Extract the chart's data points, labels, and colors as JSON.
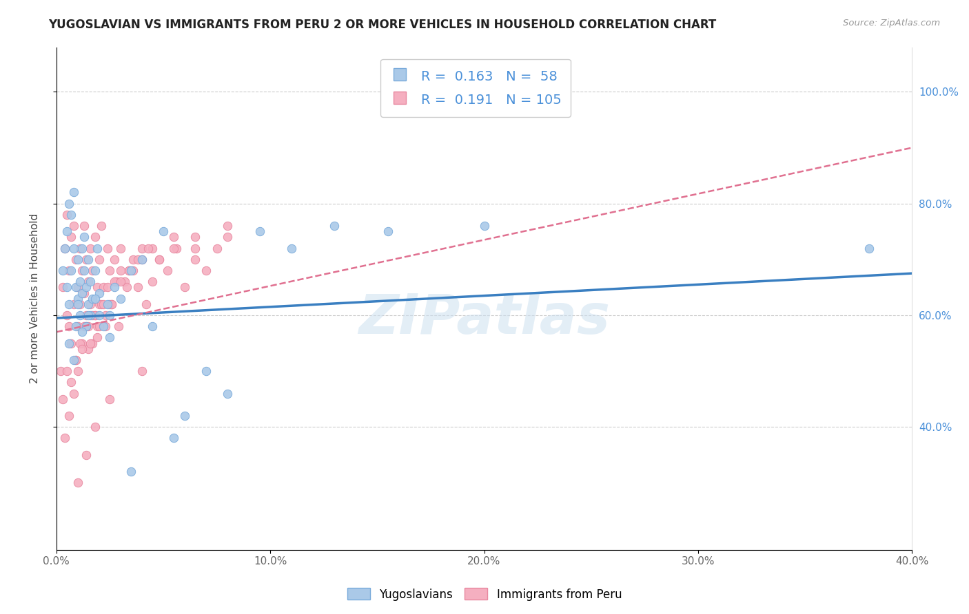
{
  "title": "YUGOSLAVIAN VS IMMIGRANTS FROM PERU 2 OR MORE VEHICLES IN HOUSEHOLD CORRELATION CHART",
  "source_text": "Source: ZipAtlas.com",
  "ylabel": "2 or more Vehicles in Household",
  "xmin": 0.0,
  "xmax": 0.4,
  "ymin": 0.18,
  "ymax": 1.08,
  "x_tick_labels": [
    "0.0%",
    "10.0%",
    "20.0%",
    "30.0%",
    "40.0%"
  ],
  "x_tick_values": [
    0.0,
    0.1,
    0.2,
    0.3,
    0.4
  ],
  "y_tick_labels": [
    "40.0%",
    "60.0%",
    "80.0%",
    "100.0%"
  ],
  "y_tick_values": [
    0.4,
    0.6,
    0.8,
    1.0
  ],
  "blue_R": 0.163,
  "blue_N": 58,
  "pink_R": 0.191,
  "pink_N": 105,
  "blue_color": "#aac9e8",
  "pink_color": "#f5afc0",
  "blue_edge": "#7aabdb",
  "pink_edge": "#e888a0",
  "trend_blue": "#3a7fc1",
  "trend_pink": "#e07090",
  "watermark": "ZIPatlas",
  "legend_blue_label": "Yugoslavians",
  "legend_pink_label": "Immigrants from Peru",
  "blue_x": [
    0.003,
    0.004,
    0.005,
    0.005,
    0.006,
    0.006,
    0.007,
    0.007,
    0.008,
    0.008,
    0.009,
    0.009,
    0.01,
    0.01,
    0.011,
    0.011,
    0.012,
    0.012,
    0.013,
    0.013,
    0.014,
    0.014,
    0.015,
    0.015,
    0.016,
    0.016,
    0.017,
    0.018,
    0.019,
    0.02,
    0.02,
    0.022,
    0.024,
    0.025,
    0.027,
    0.03,
    0.035,
    0.04,
    0.045,
    0.05,
    0.055,
    0.06,
    0.07,
    0.08,
    0.095,
    0.11,
    0.13,
    0.155,
    0.2,
    0.38,
    0.006,
    0.008,
    0.01,
    0.012,
    0.015,
    0.018,
    0.025,
    0.035
  ],
  "blue_y": [
    0.68,
    0.72,
    0.75,
    0.65,
    0.8,
    0.62,
    0.78,
    0.68,
    0.82,
    0.72,
    0.65,
    0.58,
    0.7,
    0.63,
    0.66,
    0.6,
    0.64,
    0.72,
    0.68,
    0.74,
    0.65,
    0.58,
    0.62,
    0.7,
    0.66,
    0.6,
    0.63,
    0.68,
    0.72,
    0.6,
    0.64,
    0.58,
    0.62,
    0.6,
    0.65,
    0.63,
    0.68,
    0.7,
    0.58,
    0.75,
    0.38,
    0.42,
    0.5,
    0.46,
    0.75,
    0.72,
    0.76,
    0.75,
    0.76,
    0.72,
    0.55,
    0.52,
    0.62,
    0.57,
    0.6,
    0.63,
    0.56,
    0.32
  ],
  "pink_x": [
    0.002,
    0.003,
    0.004,
    0.005,
    0.005,
    0.006,
    0.006,
    0.007,
    0.007,
    0.008,
    0.008,
    0.009,
    0.009,
    0.01,
    0.01,
    0.011,
    0.011,
    0.012,
    0.012,
    0.013,
    0.013,
    0.014,
    0.014,
    0.015,
    0.015,
    0.016,
    0.016,
    0.017,
    0.017,
    0.018,
    0.018,
    0.019,
    0.019,
    0.02,
    0.02,
    0.021,
    0.022,
    0.023,
    0.024,
    0.025,
    0.026,
    0.027,
    0.028,
    0.029,
    0.03,
    0.032,
    0.034,
    0.036,
    0.038,
    0.04,
    0.042,
    0.045,
    0.048,
    0.052,
    0.056,
    0.06,
    0.065,
    0.07,
    0.075,
    0.08,
    0.003,
    0.005,
    0.007,
    0.009,
    0.011,
    0.013,
    0.015,
    0.017,
    0.019,
    0.021,
    0.023,
    0.025,
    0.027,
    0.03,
    0.033,
    0.036,
    0.04,
    0.045,
    0.055,
    0.065,
    0.004,
    0.006,
    0.008,
    0.01,
    0.012,
    0.014,
    0.016,
    0.018,
    0.02,
    0.022,
    0.024,
    0.026,
    0.03,
    0.034,
    0.038,
    0.043,
    0.048,
    0.055,
    0.065,
    0.08,
    0.01,
    0.014,
    0.018,
    0.025,
    0.04
  ],
  "pink_y": [
    0.5,
    0.65,
    0.72,
    0.6,
    0.78,
    0.68,
    0.58,
    0.74,
    0.55,
    0.76,
    0.62,
    0.7,
    0.52,
    0.65,
    0.58,
    0.72,
    0.62,
    0.68,
    0.55,
    0.76,
    0.64,
    0.6,
    0.7,
    0.66,
    0.58,
    0.72,
    0.62,
    0.68,
    0.55,
    0.74,
    0.6,
    0.65,
    0.58,
    0.7,
    0.62,
    0.76,
    0.65,
    0.6,
    0.72,
    0.68,
    0.62,
    0.7,
    0.66,
    0.58,
    0.72,
    0.66,
    0.68,
    0.7,
    0.65,
    0.72,
    0.62,
    0.66,
    0.7,
    0.68,
    0.72,
    0.65,
    0.7,
    0.68,
    0.72,
    0.74,
    0.45,
    0.5,
    0.48,
    0.52,
    0.55,
    0.58,
    0.54,
    0.6,
    0.56,
    0.62,
    0.58,
    0.62,
    0.66,
    0.68,
    0.65,
    0.68,
    0.7,
    0.72,
    0.74,
    0.72,
    0.38,
    0.42,
    0.46,
    0.5,
    0.54,
    0.58,
    0.55,
    0.6,
    0.58,
    0.62,
    0.65,
    0.62,
    0.66,
    0.68,
    0.7,
    0.72,
    0.7,
    0.72,
    0.74,
    0.76,
    0.3,
    0.35,
    0.4,
    0.45,
    0.5
  ]
}
